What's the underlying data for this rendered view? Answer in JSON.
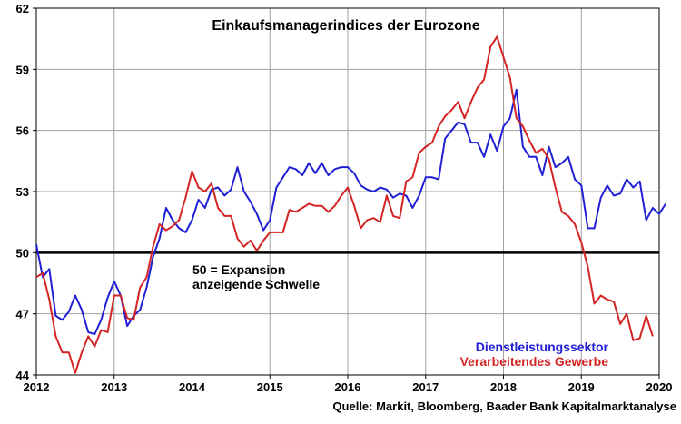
{
  "chart_data": {
    "type": "line",
    "title": "Einkaufsmanagerindices der Eurozone",
    "source": "Quelle: Markit, Bloomberg, Baader Bank Kapitalmarktanalyse",
    "annotation": [
      "50 = Expansion",
      "anzeigende Schwelle"
    ],
    "xlim": [
      2012,
      2020
    ],
    "ylim": [
      44,
      62
    ],
    "x_ticks": [
      2012,
      2013,
      2014,
      2015,
      2016,
      2017,
      2018,
      2019,
      2020
    ],
    "x_tick_labels": [
      "2012",
      "2013",
      "2014",
      "2015",
      "2016",
      "2017",
      "2018",
      "2019",
      "2020"
    ],
    "y_ticks": [
      44,
      47,
      50,
      53,
      56,
      59,
      62
    ],
    "y_tick_labels": [
      "44",
      "47",
      "50",
      "53",
      "56",
      "59",
      "62"
    ],
    "grid": true,
    "threshold": 50,
    "legend_position": "bottom-right",
    "series": [
      {
        "name": "Dienstleistungssektor",
        "color": "#1f1fd6",
        "points": [
          [
            2012.0,
            50.4
          ],
          [
            2012.083,
            48.8
          ],
          [
            2012.167,
            49.2
          ],
          [
            2012.25,
            46.9
          ],
          [
            2012.333,
            46.7
          ],
          [
            2012.417,
            47.1
          ],
          [
            2012.5,
            47.9
          ],
          [
            2012.583,
            47.2
          ],
          [
            2012.667,
            46.1
          ],
          [
            2012.75,
            46.0
          ],
          [
            2012.833,
            46.7
          ],
          [
            2012.917,
            47.8
          ],
          [
            2013.0,
            48.6
          ],
          [
            2013.083,
            47.9
          ],
          [
            2013.167,
            46.4
          ],
          [
            2013.25,
            46.9
          ],
          [
            2013.333,
            47.2
          ],
          [
            2013.417,
            48.3
          ],
          [
            2013.5,
            49.8
          ],
          [
            2013.583,
            50.7
          ],
          [
            2013.667,
            52.2
          ],
          [
            2013.75,
            51.6
          ],
          [
            2013.833,
            51.2
          ],
          [
            2013.917,
            51.0
          ],
          [
            2014.0,
            51.6
          ],
          [
            2014.083,
            52.6
          ],
          [
            2014.167,
            52.2
          ],
          [
            2014.25,
            53.1
          ],
          [
            2014.333,
            53.2
          ],
          [
            2014.417,
            52.8
          ],
          [
            2014.5,
            53.1
          ],
          [
            2014.583,
            54.2
          ],
          [
            2014.667,
            53.0
          ],
          [
            2014.75,
            52.5
          ],
          [
            2014.833,
            51.9
          ],
          [
            2014.917,
            51.1
          ],
          [
            2015.0,
            51.6
          ],
          [
            2015.083,
            53.2
          ],
          [
            2015.167,
            53.7
          ],
          [
            2015.25,
            54.2
          ],
          [
            2015.333,
            54.1
          ],
          [
            2015.417,
            53.8
          ],
          [
            2015.5,
            54.4
          ],
          [
            2015.583,
            53.9
          ],
          [
            2015.667,
            54.4
          ],
          [
            2015.75,
            53.8
          ],
          [
            2015.833,
            54.1
          ],
          [
            2015.917,
            54.2
          ],
          [
            2016.0,
            54.2
          ],
          [
            2016.083,
            53.9
          ],
          [
            2016.167,
            53.3
          ],
          [
            2016.25,
            53.1
          ],
          [
            2016.333,
            53.0
          ],
          [
            2016.417,
            53.2
          ],
          [
            2016.5,
            53.1
          ],
          [
            2016.583,
            52.7
          ],
          [
            2016.667,
            52.9
          ],
          [
            2016.75,
            52.8
          ],
          [
            2016.833,
            52.2
          ],
          [
            2016.917,
            52.8
          ],
          [
            2017.0,
            53.7
          ],
          [
            2017.083,
            53.7
          ],
          [
            2017.167,
            53.6
          ],
          [
            2017.25,
            55.6
          ],
          [
            2017.333,
            56.0
          ],
          [
            2017.417,
            56.4
          ],
          [
            2017.5,
            56.3
          ],
          [
            2017.583,
            55.4
          ],
          [
            2017.667,
            55.4
          ],
          [
            2017.75,
            54.7
          ],
          [
            2017.833,
            55.8
          ],
          [
            2017.917,
            55.0
          ],
          [
            2018.0,
            56.2
          ],
          [
            2018.083,
            56.6
          ],
          [
            2018.167,
            58.0
          ],
          [
            2018.25,
            55.2
          ],
          [
            2018.333,
            54.7
          ],
          [
            2018.417,
            54.7
          ],
          [
            2018.5,
            53.8
          ],
          [
            2018.583,
            55.2
          ],
          [
            2018.667,
            54.2
          ],
          [
            2018.75,
            54.4
          ],
          [
            2018.833,
            54.7
          ],
          [
            2018.917,
            53.6
          ],
          [
            2019.0,
            53.3
          ],
          [
            2019.083,
            51.2
          ],
          [
            2019.167,
            51.2
          ],
          [
            2019.25,
            52.7
          ],
          [
            2019.333,
            53.3
          ],
          [
            2019.417,
            52.8
          ],
          [
            2019.5,
            52.9
          ],
          [
            2019.583,
            53.6
          ],
          [
            2019.667,
            53.2
          ],
          [
            2019.75,
            53.5
          ],
          [
            2019.833,
            51.6
          ],
          [
            2019.917,
            52.2
          ],
          [
            2020.0,
            51.9
          ],
          [
            2020.083,
            52.4
          ]
        ]
      },
      {
        "name": "Verarbeitendes Gewerbe",
        "color": "#d42424",
        "points": [
          [
            2012.0,
            48.8
          ],
          [
            2012.083,
            49.0
          ],
          [
            2012.167,
            47.7
          ],
          [
            2012.25,
            45.9
          ],
          [
            2012.333,
            45.1
          ],
          [
            2012.417,
            45.1
          ],
          [
            2012.5,
            44.1
          ],
          [
            2012.583,
            45.1
          ],
          [
            2012.667,
            45.9
          ],
          [
            2012.75,
            45.4
          ],
          [
            2012.833,
            46.2
          ],
          [
            2012.917,
            46.1
          ],
          [
            2013.0,
            47.9
          ],
          [
            2013.083,
            47.9
          ],
          [
            2013.167,
            46.8
          ],
          [
            2013.25,
            46.7
          ],
          [
            2013.333,
            48.3
          ],
          [
            2013.417,
            48.8
          ],
          [
            2013.5,
            50.3
          ],
          [
            2013.583,
            51.4
          ],
          [
            2013.667,
            51.1
          ],
          [
            2013.75,
            51.3
          ],
          [
            2013.833,
            51.6
          ],
          [
            2013.917,
            52.7
          ],
          [
            2014.0,
            54.0
          ],
          [
            2014.083,
            53.2
          ],
          [
            2014.167,
            53.0
          ],
          [
            2014.25,
            53.4
          ],
          [
            2014.333,
            52.2
          ],
          [
            2014.417,
            51.8
          ],
          [
            2014.5,
            51.8
          ],
          [
            2014.583,
            50.7
          ],
          [
            2014.667,
            50.3
          ],
          [
            2014.75,
            50.6
          ],
          [
            2014.833,
            50.1
          ],
          [
            2014.917,
            50.6
          ],
          [
            2015.0,
            51.0
          ],
          [
            2015.083,
            51.0
          ],
          [
            2015.167,
            51.0
          ],
          [
            2015.25,
            52.1
          ],
          [
            2015.333,
            52.0
          ],
          [
            2015.417,
            52.2
          ],
          [
            2015.5,
            52.4
          ],
          [
            2015.583,
            52.3
          ],
          [
            2015.667,
            52.3
          ],
          [
            2015.75,
            52.0
          ],
          [
            2015.833,
            52.3
          ],
          [
            2015.917,
            52.8
          ],
          [
            2016.0,
            53.2
          ],
          [
            2016.083,
            52.3
          ],
          [
            2016.167,
            51.2
          ],
          [
            2016.25,
            51.6
          ],
          [
            2016.333,
            51.7
          ],
          [
            2016.417,
            51.5
          ],
          [
            2016.5,
            52.8
          ],
          [
            2016.583,
            51.8
          ],
          [
            2016.667,
            51.7
          ],
          [
            2016.75,
            53.5
          ],
          [
            2016.833,
            53.7
          ],
          [
            2016.917,
            54.9
          ],
          [
            2017.0,
            55.2
          ],
          [
            2017.083,
            55.4
          ],
          [
            2017.167,
            56.2
          ],
          [
            2017.25,
            56.7
          ],
          [
            2017.333,
            57.0
          ],
          [
            2017.417,
            57.4
          ],
          [
            2017.5,
            56.6
          ],
          [
            2017.583,
            57.4
          ],
          [
            2017.667,
            58.1
          ],
          [
            2017.75,
            58.5
          ],
          [
            2017.833,
            60.1
          ],
          [
            2017.917,
            60.6
          ],
          [
            2018.0,
            59.6
          ],
          [
            2018.083,
            58.6
          ],
          [
            2018.167,
            56.6
          ],
          [
            2018.25,
            56.2
          ],
          [
            2018.333,
            55.5
          ],
          [
            2018.417,
            54.9
          ],
          [
            2018.5,
            55.1
          ],
          [
            2018.583,
            54.6
          ],
          [
            2018.667,
            53.2
          ],
          [
            2018.75,
            52.0
          ],
          [
            2018.833,
            51.8
          ],
          [
            2018.917,
            51.4
          ],
          [
            2019.0,
            50.5
          ],
          [
            2019.083,
            49.3
          ],
          [
            2019.167,
            47.5
          ],
          [
            2019.25,
            47.9
          ],
          [
            2019.333,
            47.7
          ],
          [
            2019.417,
            47.6
          ],
          [
            2019.5,
            46.5
          ],
          [
            2019.583,
            47.0
          ],
          [
            2019.667,
            45.7
          ],
          [
            2019.75,
            45.8
          ],
          [
            2019.833,
            46.9
          ],
          [
            2019.917,
            45.9
          ]
        ]
      }
    ]
  }
}
